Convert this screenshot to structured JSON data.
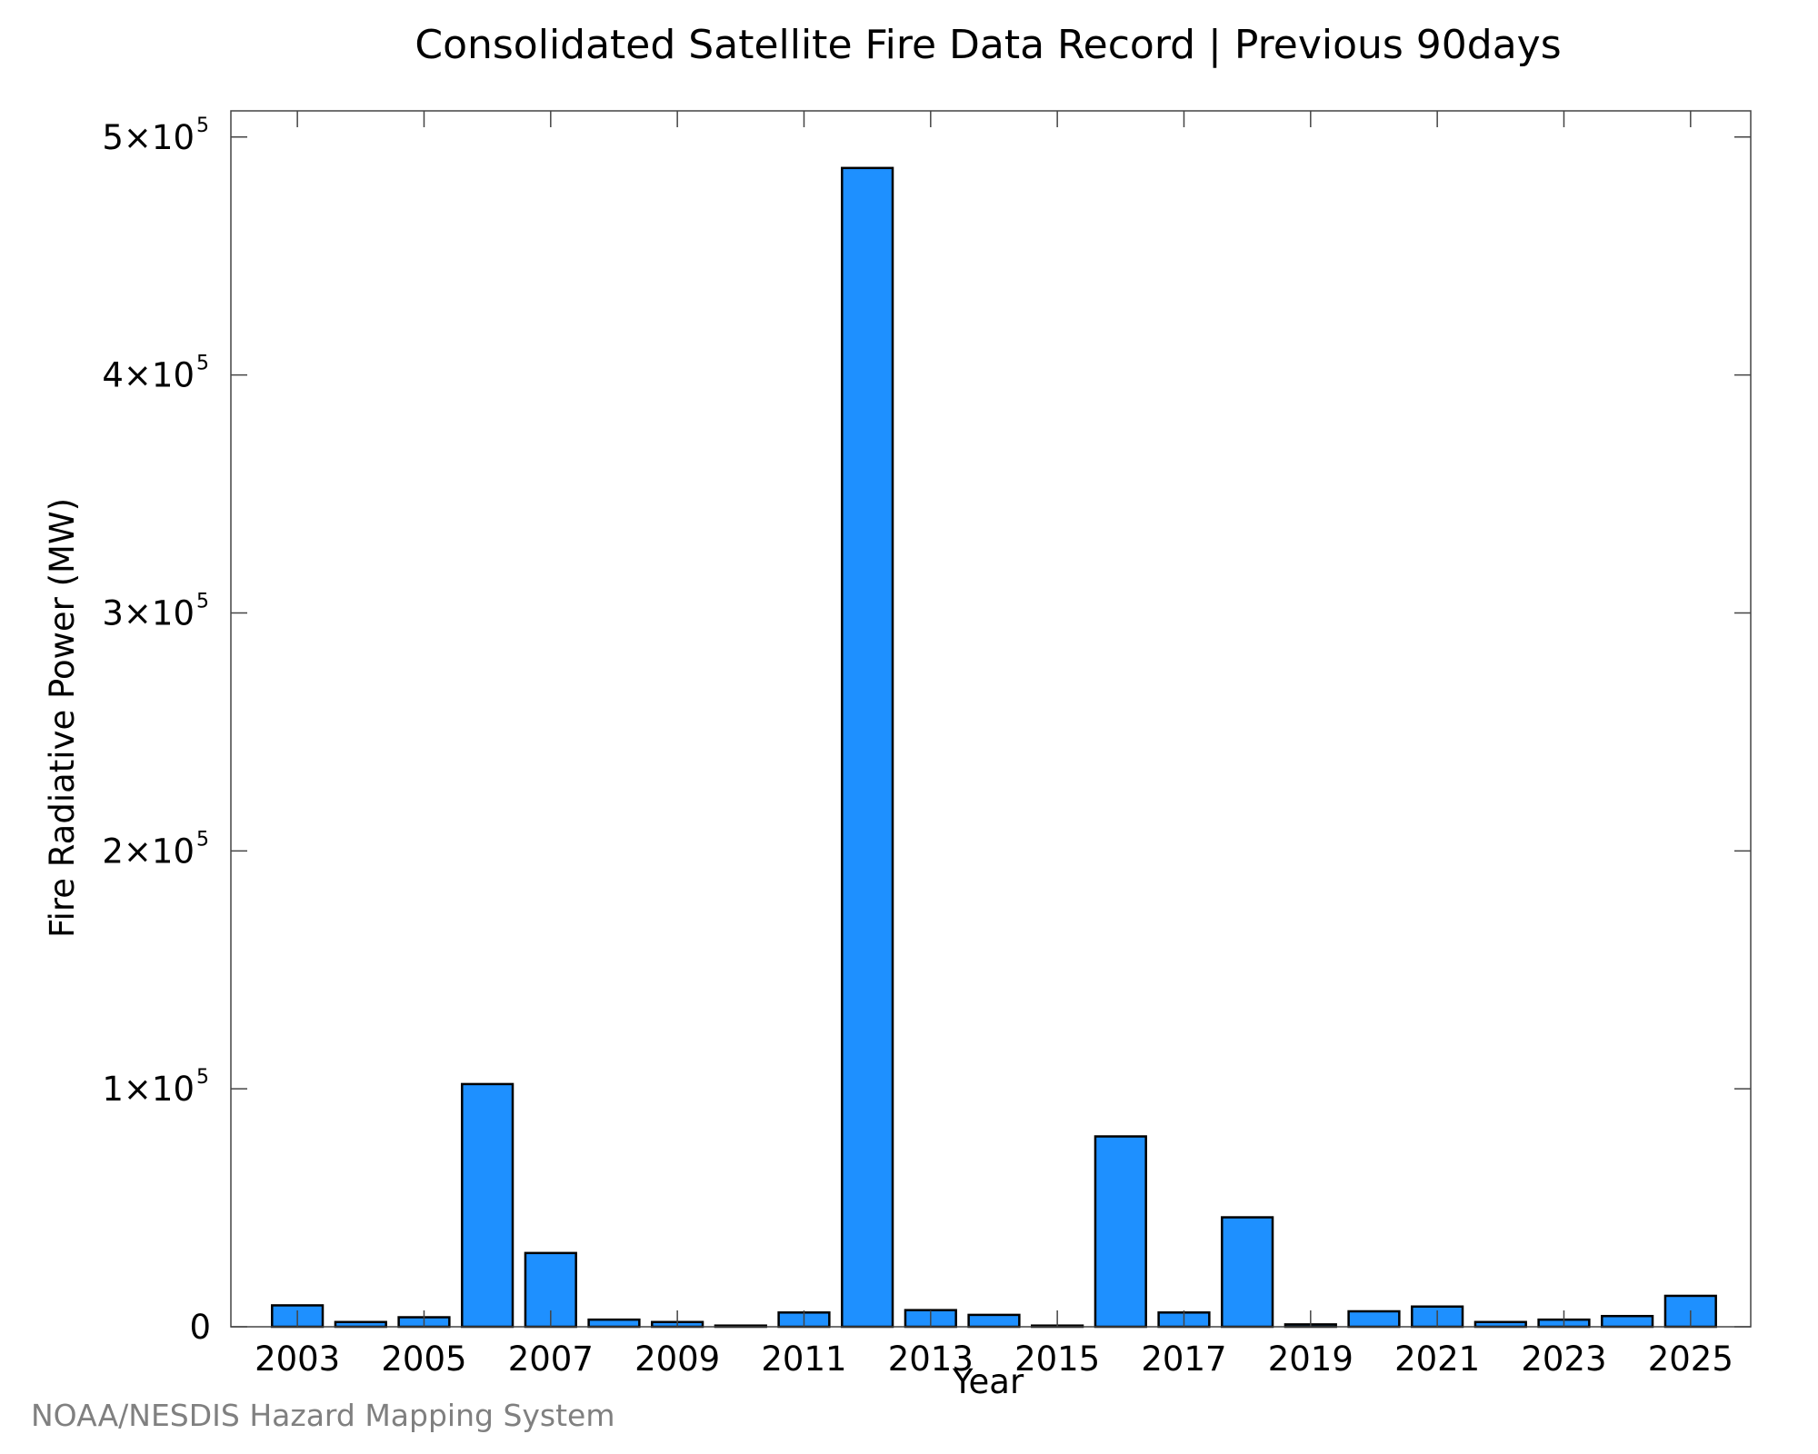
{
  "chart_data": {
    "type": "bar",
    "title": "Consolidated Satellite Fire Data Record | Previous 90days",
    "xlabel": "Year",
    "ylabel": "Fire Radiative Power (MW)",
    "categories": [
      "2003",
      "2004",
      "2005",
      "2006",
      "2007",
      "2008",
      "2009",
      "2010",
      "2011",
      "2012",
      "2013",
      "2014",
      "2015",
      "2016",
      "2017",
      "2018",
      "2019",
      "2020",
      "2021",
      "2022",
      "2023",
      "2024",
      "2025"
    ],
    "values": [
      9000,
      2000,
      4000,
      102000,
      31000,
      3000,
      2000,
      500,
      6000,
      487000,
      7000,
      5000,
      500,
      80000,
      6000,
      46000,
      1000,
      6500,
      8500,
      2000,
      3000,
      4500,
      13000
    ],
    "xticks": [
      "2003",
      "2005",
      "2007",
      "2009",
      "2011",
      "2013",
      "2015",
      "2017",
      "2019",
      "2021",
      "2023",
      "2025"
    ],
    "yticks": [
      {
        "value": 0,
        "mantissa": "0",
        "exp": ""
      },
      {
        "value": 100000,
        "mantissa": "1×10",
        "exp": "5"
      },
      {
        "value": 200000,
        "mantissa": "2×10",
        "exp": "5"
      },
      {
        "value": 300000,
        "mantissa": "3×10",
        "exp": "5"
      },
      {
        "value": 400000,
        "mantissa": "4×10",
        "exp": "5"
      },
      {
        "value": 500000,
        "mantissa": "5×10",
        "exp": "5"
      }
    ],
    "ylim": [
      0,
      511000
    ],
    "xlim": [
      2001.95,
      2025.95
    ],
    "bar_color": "#1e90ff",
    "grid": false,
    "legend": "none"
  },
  "credit": "NOAA/NESDIS Hazard Mapping System"
}
